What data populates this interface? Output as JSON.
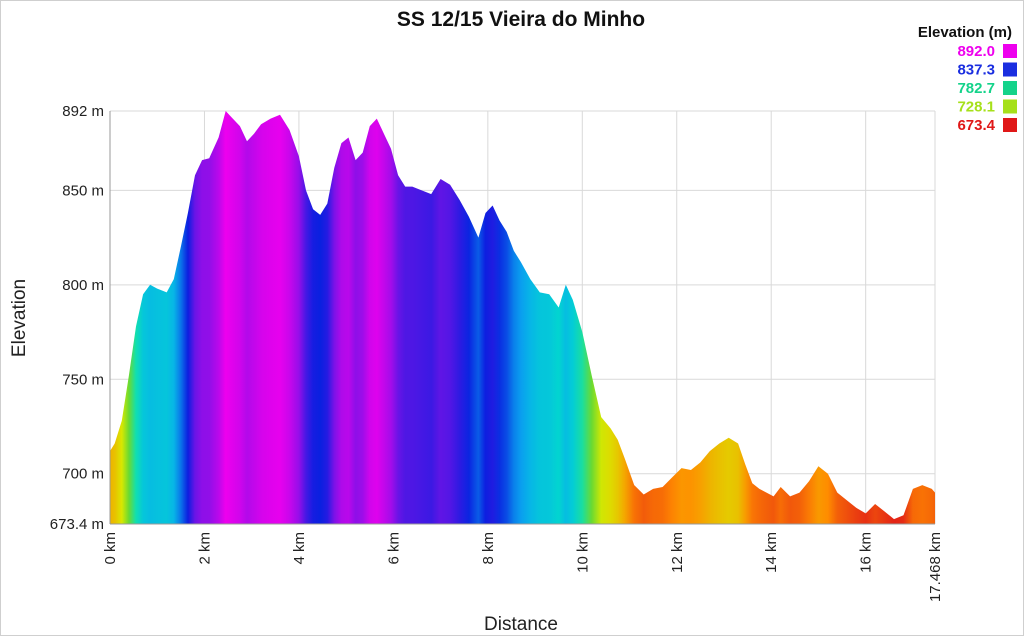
{
  "chart_data": {
    "type": "area",
    "title": "SS 12/15 Vieira do Minho",
    "xlabel": "Distance",
    "ylabel": "Elevation",
    "xlim": [
      0,
      17.468
    ],
    "ylim": [
      673.4,
      892
    ],
    "grid": true,
    "x_ticks": [
      {
        "value": 0,
        "label": "0 km"
      },
      {
        "value": 2,
        "label": "2 km"
      },
      {
        "value": 4,
        "label": "4 km"
      },
      {
        "value": 6,
        "label": "6 km"
      },
      {
        "value": 8,
        "label": "8 km"
      },
      {
        "value": 10,
        "label": "10 km"
      },
      {
        "value": 12,
        "label": "12 km"
      },
      {
        "value": 14,
        "label": "14 km"
      },
      {
        "value": 16,
        "label": "16 km"
      },
      {
        "value": 17.468,
        "label": "17.468 km"
      }
    ],
    "y_ticks": [
      {
        "value": 673.4,
        "label": "673.4 m"
      },
      {
        "value": 700,
        "label": "700 m"
      },
      {
        "value": 750,
        "label": "750 m"
      },
      {
        "value": 800,
        "label": "800 m"
      },
      {
        "value": 850,
        "label": "850 m"
      },
      {
        "value": 892,
        "label": "892 m"
      }
    ],
    "legend": {
      "title": "Elevation (m)",
      "placement": "top-right",
      "items": [
        {
          "label": "892.0",
          "color": "#ee00ee"
        },
        {
          "label": "837.3",
          "color": "#1a2ee0"
        },
        {
          "label": "782.7",
          "color": "#14d38a"
        },
        {
          "label": "728.1",
          "color": "#a6e01a"
        },
        {
          "label": "673.4",
          "color": "#e01818"
        }
      ]
    },
    "color_scale": [
      {
        "value": 673.4,
        "color": "#e01818"
      },
      {
        "value": 700,
        "color": "#ff8c00"
      },
      {
        "value": 728.1,
        "color": "#d8e800"
      },
      {
        "value": 755,
        "color": "#5cd838"
      },
      {
        "value": 782.7,
        "color": "#00e0c8"
      },
      {
        "value": 810,
        "color": "#0aa8f0"
      },
      {
        "value": 837.3,
        "color": "#0a1ee0"
      },
      {
        "value": 865,
        "color": "#8a10e8"
      },
      {
        "value": 892,
        "color": "#ee00ee"
      }
    ],
    "series": [
      {
        "x": [
          0,
          0.1,
          0.25,
          0.4,
          0.55,
          0.7,
          0.85,
          1.0,
          1.1,
          1.2,
          1.35,
          1.5,
          1.65,
          1.8,
          1.95,
          2.1,
          2.3,
          2.45,
          2.6,
          2.75,
          2.9,
          3.05,
          3.2,
          3.4,
          3.6,
          3.8,
          4.0,
          4.15,
          4.3,
          4.45,
          4.6,
          4.75,
          4.9,
          5.05,
          5.2,
          5.35,
          5.5,
          5.65,
          5.8,
          5.95,
          6.1,
          6.25,
          6.4,
          6.6,
          6.8,
          7.0,
          7.2,
          7.4,
          7.6,
          7.8,
          7.95,
          8.1,
          8.25,
          8.4,
          8.55,
          8.7,
          8.9,
          9.1,
          9.3,
          9.5,
          9.65,
          9.8,
          10.0,
          10.2,
          10.4,
          10.6,
          10.75,
          10.9,
          11.1,
          11.3,
          11.5,
          11.7,
          11.9,
          12.1,
          12.3,
          12.5,
          12.7,
          12.9,
          13.1,
          13.3,
          13.45,
          13.6,
          13.75,
          13.9,
          14.05,
          14.2,
          14.4,
          14.6,
          14.8,
          15.0,
          15.2,
          15.4,
          15.6,
          15.8,
          16.0,
          16.2,
          16.4,
          16.6,
          16.8,
          17.0,
          17.2,
          17.4,
          17.468
        ],
        "values": [
          712,
          716,
          728,
          752,
          778,
          795,
          800,
          798,
          797,
          796,
          803,
          820,
          838,
          858,
          866,
          867,
          878,
          892,
          888,
          884,
          876,
          880,
          885,
          888,
          890,
          882,
          868,
          850,
          840,
          837,
          843,
          862,
          875,
          878,
          866,
          870,
          884,
          888,
          880,
          872,
          858,
          852,
          852,
          850,
          848,
          856,
          853,
          845,
          836,
          825,
          838,
          842,
          834,
          828,
          818,
          812,
          803,
          796,
          795,
          788,
          800,
          792,
          775,
          752,
          730,
          724,
          718,
          708,
          694,
          689,
          692,
          693,
          698,
          703,
          702,
          706,
          712,
          716,
          719,
          716,
          705,
          695,
          692,
          690,
          688,
          693,
          688,
          690,
          696,
          704,
          700,
          690,
          686,
          682,
          679,
          684,
          680,
          676,
          678,
          692,
          694,
          692,
          690
        ]
      }
    ]
  }
}
